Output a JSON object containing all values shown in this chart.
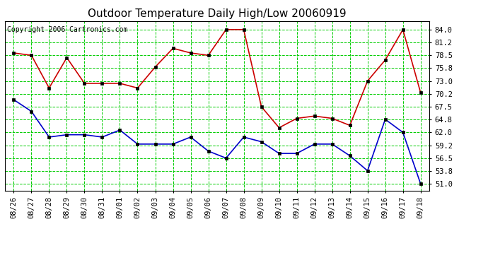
{
  "title": "Outdoor Temperature Daily High/Low 20060919",
  "copyright": "Copyright 2006 Cartronics.com",
  "dates": [
    "08/26",
    "08/27",
    "08/28",
    "08/29",
    "08/30",
    "08/31",
    "09/01",
    "09/02",
    "09/03",
    "09/04",
    "09/05",
    "09/06",
    "09/07",
    "09/08",
    "09/09",
    "09/10",
    "09/11",
    "09/12",
    "09/13",
    "09/14",
    "09/15",
    "09/16",
    "09/17",
    "09/18"
  ],
  "highs": [
    79.0,
    78.5,
    71.5,
    78.0,
    72.5,
    72.5,
    72.5,
    71.5,
    76.0,
    80.0,
    79.0,
    78.5,
    84.0,
    84.0,
    67.5,
    63.0,
    65.0,
    65.5,
    65.0,
    63.5,
    73.0,
    77.5,
    84.0,
    70.5
  ],
  "lows": [
    69.0,
    66.5,
    61.0,
    61.5,
    61.5,
    61.0,
    62.5,
    59.5,
    59.5,
    59.5,
    61.0,
    58.0,
    56.5,
    61.0,
    60.0,
    57.5,
    57.5,
    59.5,
    59.5,
    57.0,
    53.8,
    64.8,
    62.0,
    51.0
  ],
  "high_color": "#cc0000",
  "low_color": "#0000cc",
  "marker": "s",
  "marker_size": 3,
  "marker_color": "#000000",
  "bg_color": "#ffffff",
  "plot_bg_color": "#ffffff",
  "grid_color": "#00cc00",
  "yticks": [
    51.0,
    53.8,
    56.5,
    59.2,
    62.0,
    64.8,
    67.5,
    70.2,
    73.0,
    75.8,
    78.5,
    81.2,
    84.0
  ],
  "ylim": [
    49.5,
    85.8
  ],
  "title_fontsize": 11,
  "copyright_fontsize": 7,
  "tick_fontsize": 7.5,
  "linewidth": 1.2
}
